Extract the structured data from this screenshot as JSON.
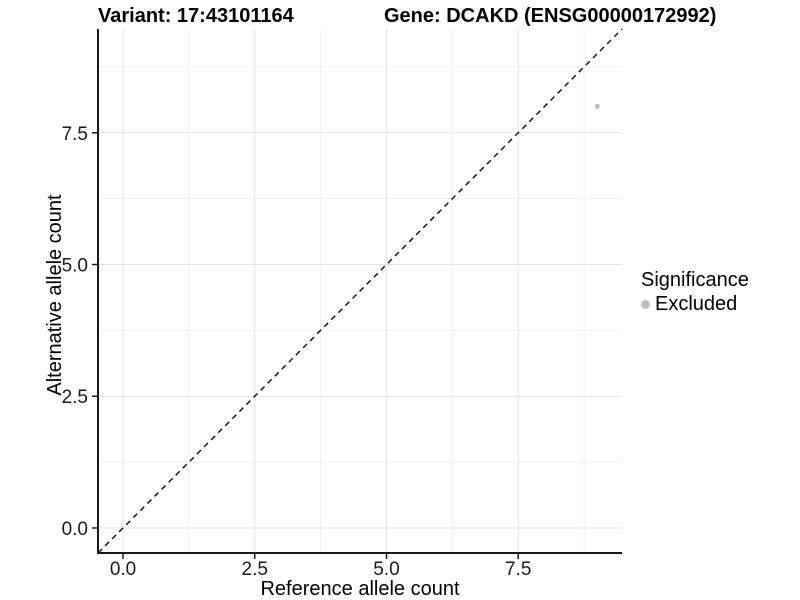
{
  "header": {
    "variant_title": "Variant: 17:43101164",
    "gene_title": "Gene: DCAKD (ENSG00000172992)"
  },
  "chart_data": {
    "type": "scatter",
    "xlabel": "Reference allele count",
    "ylabel": "Alternative allele count",
    "xlim": [
      -0.475,
      9.47
    ],
    "ylim": [
      -0.475,
      9.47
    ],
    "x_ticks": {
      "values": [
        0,
        2.5,
        5,
        7.5
      ],
      "labels": [
        "0.0",
        "2.5",
        "5.0",
        "7.5"
      ]
    },
    "y_ticks": {
      "values": [
        0,
        2.5,
        5,
        7.5
      ],
      "labels": [
        "0.0",
        "2.5",
        "5.0",
        "7.5"
      ]
    },
    "minor_breaks": [
      1.25,
      3.75,
      6.25,
      8.75
    ],
    "grid": true,
    "points": [
      {
        "x": 9,
        "y": 8,
        "series": "Excluded"
      }
    ],
    "reference_line": {
      "type": "identity",
      "slope": 1,
      "intercept": 0,
      "style": "dashed",
      "color": "#000000"
    },
    "legend": {
      "title": "Significance",
      "position": "right",
      "items": [
        {
          "label": "Excluded",
          "color": "#bfbfbf"
        }
      ]
    },
    "colors": {
      "point": "#c1c1c1",
      "grid_major": "#e3e3e3",
      "grid_minor": "#f0f0f0",
      "axis": "#1a1a1a",
      "tick_label": "#1a1a1a"
    }
  }
}
